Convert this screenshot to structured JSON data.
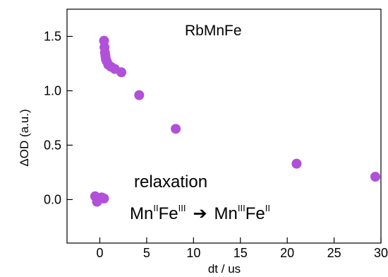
{
  "chart_data": {
    "type": "scatter",
    "title": "",
    "xlabel": "dt / us",
    "ylabel": "ΔOD  (a.u.)",
    "xlim": [
      -3.5,
      30
    ],
    "ylim": [
      -0.4,
      1.75
    ],
    "xticks": [
      0,
      5,
      10,
      15,
      20,
      25,
      30
    ],
    "yticks": [
      0.0,
      0.5,
      1.0,
      1.5
    ],
    "xtick_labels": [
      "0",
      "5",
      "10",
      "15",
      "20",
      "25",
      "30"
    ],
    "ytick_labels": [
      "0.0",
      "0.5",
      "1.0",
      "1.5"
    ],
    "grid": false,
    "marker_color": "#b150d9",
    "series": [
      {
        "x": [
          -0.5,
          -0.3,
          -0.1,
          0.2,
          0.45,
          0.45,
          0.5,
          0.55,
          0.6,
          0.65,
          0.75,
          0.9,
          1.2,
          1.6,
          2.3,
          4.2,
          8.1,
          21.0,
          29.4
        ],
        "y": [
          0.03,
          -0.02,
          0.0,
          0.02,
          0.01,
          1.46,
          1.4,
          1.35,
          1.32,
          1.29,
          1.27,
          1.24,
          1.22,
          1.2,
          1.17,
          0.96,
          0.65,
          0.33,
          0.21
        ]
      }
    ],
    "annotations": {
      "sample": "RbMnFe",
      "process": "relaxation",
      "transition": {
        "from_mn": "Mn",
        "from_mn_sup": "II",
        "from_fe": "Fe",
        "from_fe_sup": "III",
        "arrow": "➔",
        "to_mn": "Mn",
        "to_mn_sup": "III",
        "to_fe": "Fe",
        "to_fe_sup": "II"
      }
    }
  }
}
